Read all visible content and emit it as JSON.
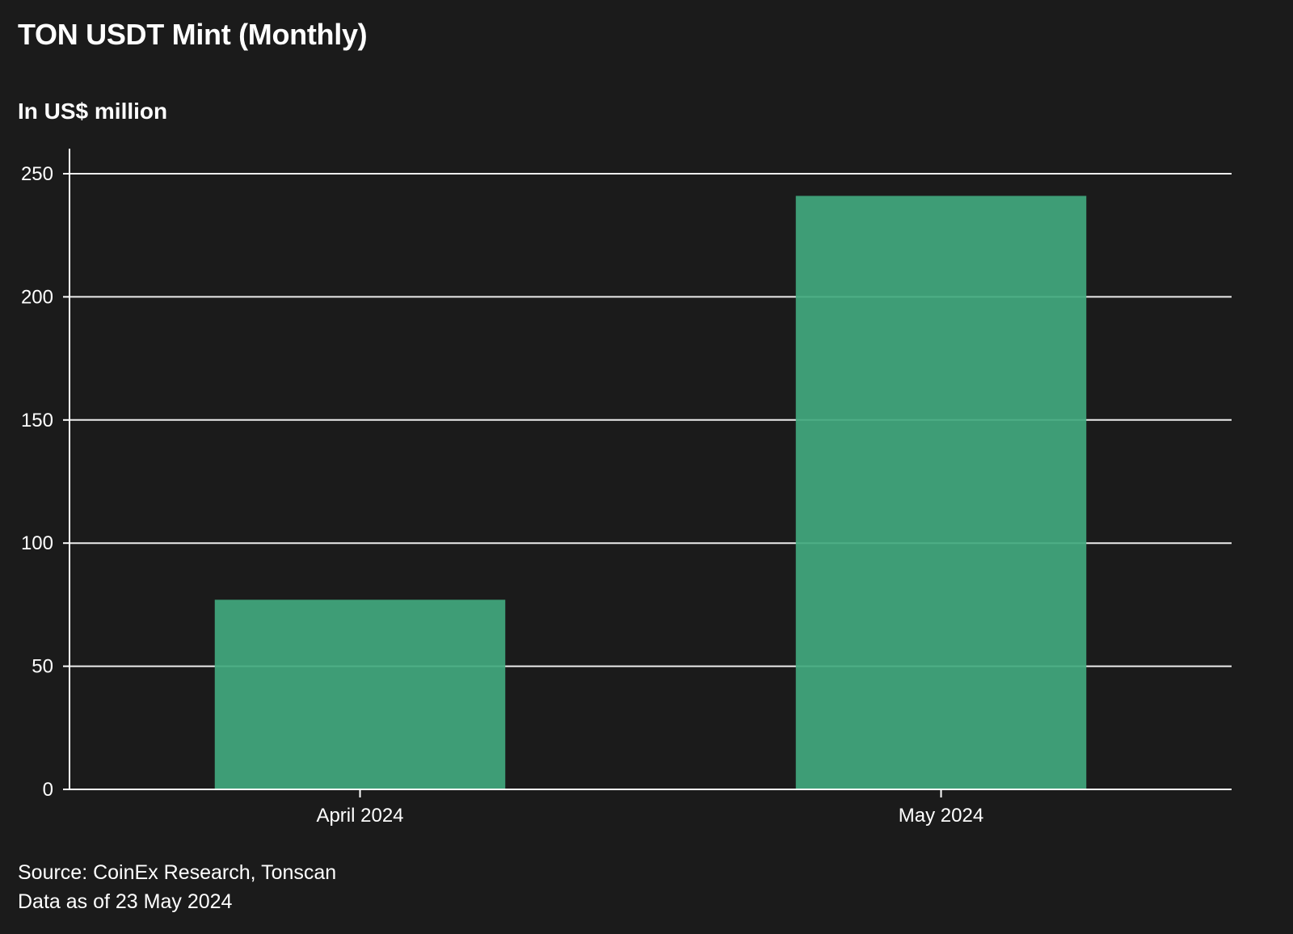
{
  "chart_data": {
    "type": "bar",
    "title": "TON USDT Mint (Monthly)",
    "subtitle": "In US$ million",
    "categories": [
      "April 2024",
      "May 2024"
    ],
    "values": [
      77,
      241
    ],
    "ylim": [
      0,
      260
    ],
    "yticks": [
      0,
      50,
      100,
      150,
      200,
      250
    ],
    "xlabel": "",
    "ylabel": "",
    "grid": true,
    "bar_color": "#41a87e",
    "background": "#1b1b1b",
    "source": "Source: CoinEx Research, Tonscan",
    "as_of": "Data as of 23 May 2024"
  }
}
